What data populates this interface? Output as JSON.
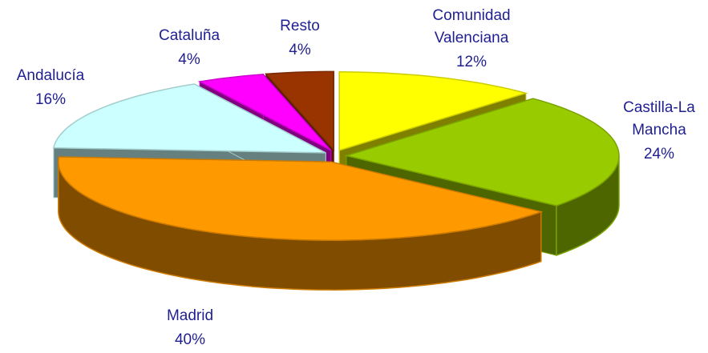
{
  "chart_data": {
    "type": "pie3d",
    "categories": [
      "Comunidad Valenciana",
      "Castilla-La Mancha",
      "Madrid",
      "Andalucía",
      "Cataluña",
      "Resto"
    ],
    "values": [
      12,
      24,
      40,
      16,
      4,
      4
    ],
    "value_labels": [
      "12%",
      "24%",
      "40%",
      "16%",
      "4%",
      "4%"
    ],
    "colors": [
      "#ffff00",
      "#99cc00",
      "#ff9900",
      "#ccffff",
      "#ff00ff",
      "#993300"
    ]
  }
}
